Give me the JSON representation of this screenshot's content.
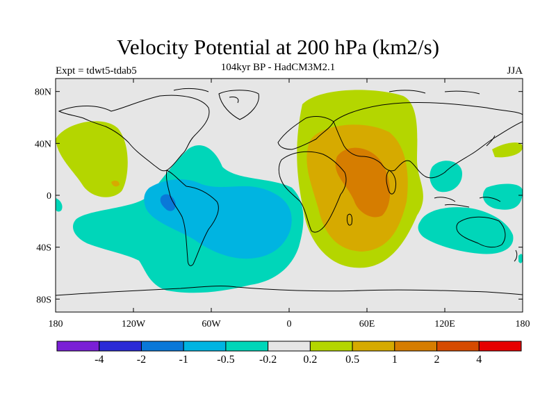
{
  "title": "Velocity Potential at 200 hPa (km2/s)",
  "subtitle": "104kyr BP - HadCM3M2.1",
  "experiment": "Expt = tdwt5-tdab5",
  "season": "JJA",
  "map": {
    "projection": "cylindrical-equidistant",
    "lon_range": [
      -180,
      180
    ],
    "lat_range": [
      -90,
      90
    ],
    "land_background": "#e6e6e6",
    "coastline_color": "#000000",
    "lat_labels": [
      {
        "text": "80N",
        "lat": 80
      },
      {
        "text": "40N",
        "lat": 40
      },
      {
        "text": "0",
        "lat": 0
      },
      {
        "text": "40S",
        "lat": -40
      },
      {
        "text": "80S",
        "lat": -80
      }
    ],
    "lon_labels": [
      {
        "text": "180",
        "lon": -180
      },
      {
        "text": "120W",
        "lon": -120
      },
      {
        "text": "60W",
        "lon": -60
      },
      {
        "text": "0",
        "lon": 0
      },
      {
        "text": "60E",
        "lon": 60
      },
      {
        "text": "120E",
        "lon": 120
      },
      {
        "text": "180",
        "lon": 180
      }
    ]
  },
  "colorbar": {
    "colors": [
      "#7a1fd6",
      "#2a2ad6",
      "#0a78d8",
      "#00b4e1",
      "#00d6b9",
      "#e6e6e6",
      "#b4d600",
      "#d6aa00",
      "#d67d00",
      "#d64b00",
      "#e60000"
    ],
    "labels": [
      "-4",
      "-2",
      "-1",
      "-0.5",
      "-0.2",
      "0.2",
      "0.5",
      "1",
      "2",
      "4"
    ]
  }
}
